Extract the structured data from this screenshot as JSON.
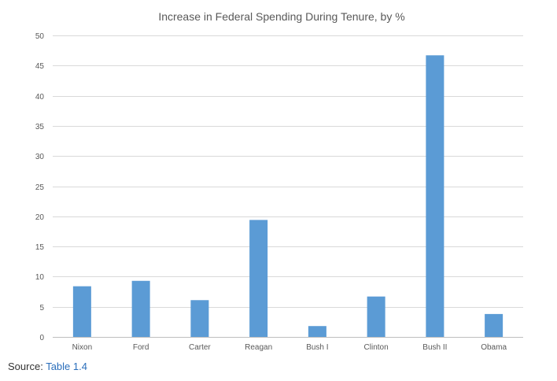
{
  "chart_data": {
    "type": "bar",
    "title": "Increase in Federal Spending During Tenure, by %",
    "xlabel": "",
    "ylabel": "",
    "categories": [
      "Nixon",
      "Ford",
      "Carter",
      "Reagan",
      "Bush I",
      "Clinton",
      "Bush II",
      "Obama"
    ],
    "values": [
      8.4,
      9.3,
      6.1,
      19.4,
      1.8,
      6.7,
      46.7,
      3.8
    ],
    "ylim": [
      0,
      50
    ],
    "yticks": [
      0,
      5,
      10,
      15,
      20,
      25,
      30,
      35,
      40,
      45,
      50
    ],
    "grid": true,
    "bar_color": "#5b9bd5",
    "legend": "none"
  },
  "footer": {
    "source_label": "Source: ",
    "source_link": "Table 1.4",
    "link_color": "#2a6ebb"
  }
}
